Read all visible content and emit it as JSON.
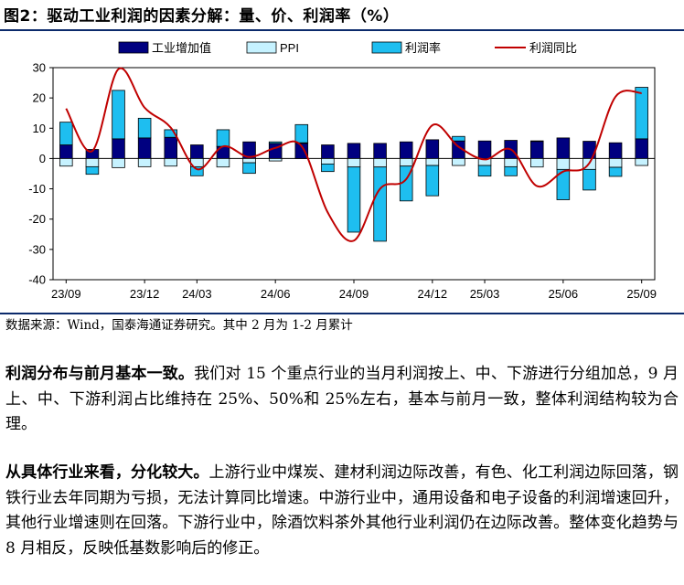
{
  "figure": {
    "title": "图2：驱动工业利润的因素分解：量、价、利润率（%）",
    "source": "数据来源：Wind，国泰海通证券研究。其中 2 月为 1-2 月累计"
  },
  "chart_data": {
    "type": "bar",
    "title": "驱动工业利润的因素分解：量、价、利润率（%）",
    "xlabel": "",
    "ylabel": "",
    "ylim": [
      -40,
      30
    ],
    "yticks": [
      30,
      20,
      10,
      0,
      -10,
      -20,
      -30,
      -40
    ],
    "grid": false,
    "legend_position": "top",
    "stacked": true,
    "categories": [
      "23/09",
      "23/10",
      "23/11",
      "23/12",
      "24/01",
      "24/03",
      "24/04",
      "24/05",
      "24/06",
      "24/07",
      "24/08",
      "24/09",
      "24/10",
      "24/11",
      "24/12",
      "25/01",
      "25/03",
      "25/04",
      "25/05",
      "25/06",
      "25/07",
      "25/08",
      "25/09"
    ],
    "tick_labels": [
      "23/09",
      "",
      "",
      "23/12",
      "",
      "24/03",
      "",
      "",
      "24/06",
      "",
      "",
      "24/09",
      "",
      "",
      "24/12",
      "",
      "25/03",
      "",
      "",
      "25/06",
      "",
      "",
      "25/09"
    ],
    "series": [
      {
        "name": "工业增加值",
        "kind": "bar",
        "color": "#000080",
        "values": [
          4.5,
          3.0,
          6.5,
          6.8,
          7.0,
          4.5,
          4.0,
          5.5,
          5.0,
          5.0,
          4.5,
          5.0,
          5.0,
          5.5,
          6.2,
          5.8,
          5.8,
          6.0,
          5.8,
          6.8,
          5.7,
          5.2,
          6.5
        ]
      },
      {
        "name": "PPI",
        "kind": "bar",
        "color": "#c6f2ff",
        "values": [
          -2.5,
          -2.7,
          -3.0,
          -2.7,
          -2.5,
          -2.7,
          -2.8,
          -1.4,
          -0.8,
          0.2,
          -1.8,
          -2.8,
          -2.8,
          -2.5,
          -2.3,
          -2.3,
          -2.3,
          -2.7,
          -2.8,
          -3.6,
          -3.6,
          -2.9,
          -2.3
        ]
      },
      {
        "name": "利润率",
        "kind": "bar",
        "color": "#1ebef0",
        "values": [
          7.5,
          -2.5,
          16.0,
          6.5,
          2.5,
          -3.0,
          5.5,
          -3.5,
          0.5,
          6.0,
          -2.5,
          -21.5,
          -24.5,
          -11.5,
          -10.0,
          1.5,
          -3.5,
          -3.0,
          0.0,
          -10.0,
          -6.8,
          -3.0,
          17.0
        ]
      },
      {
        "name": "利润同比",
        "kind": "line",
        "color": "#c00000",
        "values": [
          16.5,
          2.5,
          29.5,
          16.8,
          10.2,
          -3.5,
          4.0,
          0.5,
          3.5,
          4.1,
          -17.8,
          -27.1,
          -10.0,
          -6.8,
          11.0,
          3.9,
          -0.3,
          3.0,
          -9.1,
          -4.3,
          -1.5,
          20.4,
          21.6
        ]
      }
    ]
  },
  "paragraphs": [
    {
      "lead": "利润分布与前月基本一致。",
      "body": "我们对 15 个重点行业的当月利润按上、中、下游进行分组加总，9 月上、中、下游利润占比维持在 25%、50%和 25%左右，基本与前月一致，整体利润结构较为合理。"
    },
    {
      "lead": "从具体行业来看，分化较大。",
      "body": "上游行业中煤炭、建材利润边际改善，有色、化工利润边际回落，钢铁行业去年同期为亏损，无法计算同比增速。中游行业中，通用设备和电子设备的利润增速回升，其他行业增速则在回落。下游行业中，除酒饮料茶外其他行业利润仍在边际改善。整体变化趋势与 8 月相反，反映低基数影响后的修正。"
    }
  ]
}
